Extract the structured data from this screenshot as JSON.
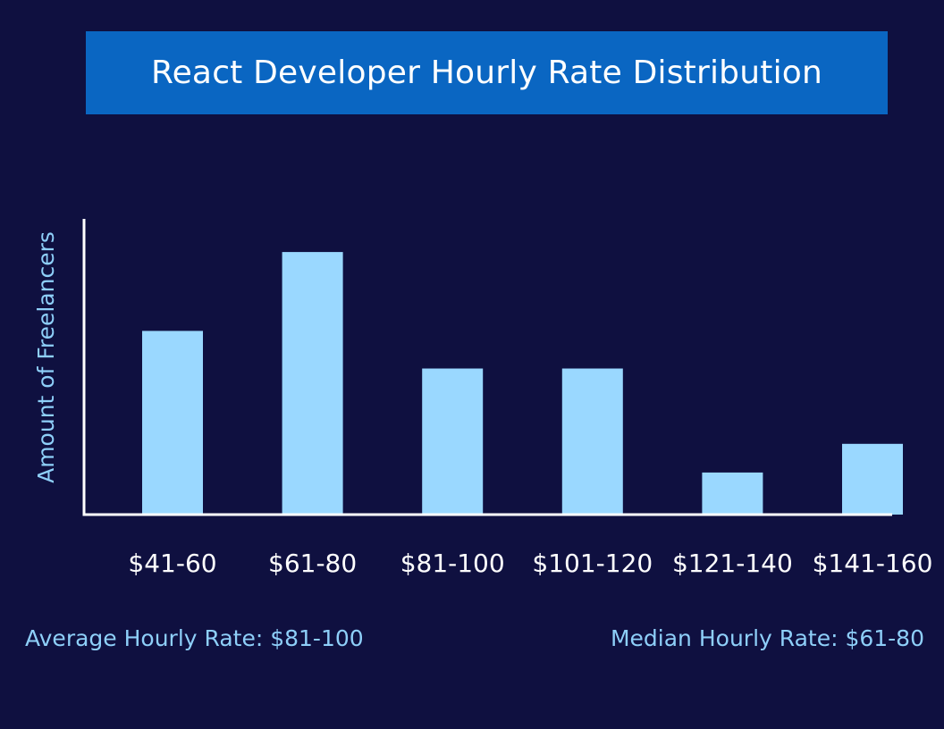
{
  "colors": {
    "background": "#0f1040",
    "title_bg": "#0a66c2",
    "bar": "#9ad8ff",
    "axis": "#ffffff",
    "tick_label": "#ffffff",
    "note": "#8ecff9"
  },
  "chart_data": {
    "type": "bar",
    "title": "React Developer Hourly Rate Distribution",
    "xlabel": "",
    "ylabel": "Amount of Freelancers",
    "categories": [
      "$41-60",
      "$61-80",
      "$81-100",
      "$101-120",
      "$121-140",
      "$141-160"
    ],
    "values": [
      205,
      293,
      163,
      163,
      47,
      79
    ],
    "ylim": [
      0,
      330
    ],
    "grid": false,
    "legend": "none"
  },
  "notes": {
    "average": "Average Hourly Rate: $81-100",
    "median": "Median Hourly Rate: $61-80"
  }
}
